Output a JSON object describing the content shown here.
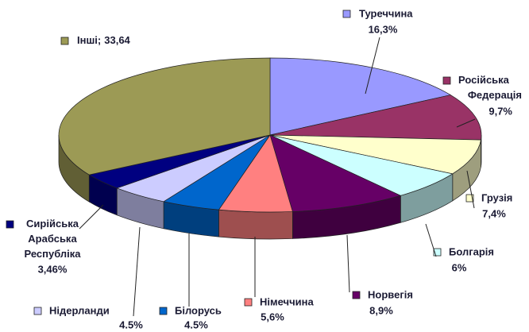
{
  "chart_data": {
    "type": "pie",
    "categories": [
      "Туреччина",
      "Російська Федерація",
      "Грузія",
      "Болгарія",
      "Норвегія",
      "Німеччина",
      "Білорусь",
      "Нідерланди",
      "Сирійська Арабська Республіка",
      "Інші;"
    ],
    "values": [
      16.3,
      9.7,
      7.4,
      6,
      8.9,
      5.6,
      4.5,
      4.5,
      3.46,
      33.64
    ],
    "value_labels": [
      "16,3%",
      "9,7%",
      "7,4%",
      "6%",
      "8,9%",
      "5,6%",
      "4.5%",
      "4.5%",
      "3,46%",
      "33,64"
    ],
    "colors": [
      "#9999ff",
      "#993366",
      "#ffffcc",
      "#ccffff",
      "#660066",
      "#ff8080",
      "#0066cc",
      "#ccccff",
      "#000080",
      "#9c9a55"
    ]
  }
}
